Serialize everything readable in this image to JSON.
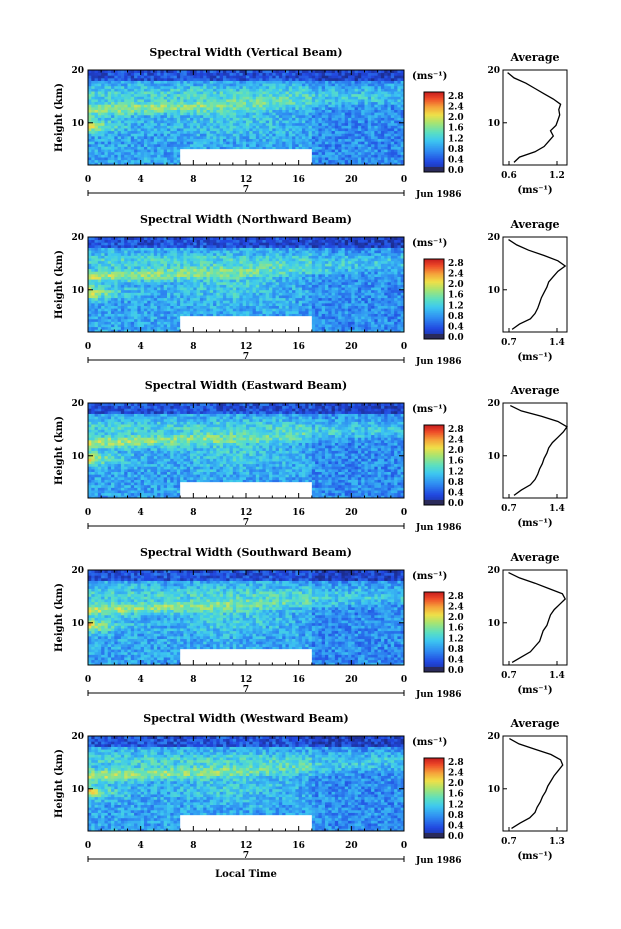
{
  "chart_data": [
    {
      "type": "heatmap",
      "title": "Spectral Width (Vertical Beam)",
      "ylabel": "Height (km)",
      "y_ticks": [
        "20",
        "10"
      ],
      "x_ticks": [
        "0",
        "4",
        "8",
        "12",
        "16",
        "20",
        "0"
      ],
      "xlim": [
        0,
        24
      ],
      "ylim": [
        2,
        20
      ],
      "date_marker": "7",
      "date_label": "Jun 1986",
      "colorbar": {
        "unit": "(ms⁻¹)",
        "ticks": [
          "2.8",
          "2.4",
          "2.0",
          "1.6",
          "1.2",
          "0.8",
          "0.4",
          "0.0"
        ]
      },
      "data_gap": {
        "x": [
          7,
          17
        ],
        "y": [
          2,
          5
        ]
      },
      "profile": {
        "title": "Average",
        "xlabel": "(ms⁻¹)",
        "x_ticks": [
          "0.6",
          "1.2"
        ],
        "xlim": [
          0.6,
          1.3
        ],
        "y_ticks": [
          "20",
          "10"
        ],
        "ylim": [
          2,
          20
        ],
        "height": [
          2.5,
          3.5,
          4.5,
          5.5,
          6.5,
          7.5,
          8.5,
          9.5,
          10.5,
          11.5,
          12.5,
          13.5,
          14.5,
          15.5,
          16.5,
          17.5,
          18.5,
          19.5
        ],
        "value": [
          0.72,
          0.78,
          0.95,
          1.05,
          1.1,
          1.15,
          1.12,
          1.18,
          1.2,
          1.22,
          1.21,
          1.23,
          1.15,
          1.05,
          0.95,
          0.85,
          0.72,
          0.65
        ]
      }
    },
    {
      "type": "heatmap",
      "title": "Spectral Width (Northward Beam)",
      "ylabel": "Height (km)",
      "y_ticks": [
        "20",
        "10"
      ],
      "x_ticks": [
        "0",
        "4",
        "8",
        "12",
        "16",
        "20",
        "0"
      ],
      "xlim": [
        0,
        24
      ],
      "ylim": [
        2,
        20
      ],
      "date_marker": "7",
      "date_label": "Jun 1986",
      "colorbar": {
        "unit": "(ms⁻¹)",
        "ticks": [
          "2.8",
          "2.4",
          "2.0",
          "1.6",
          "1.2",
          "0.8",
          "0.4",
          "0.0"
        ]
      },
      "data_gap": {
        "x": [
          7,
          17
        ],
        "y": [
          2,
          5
        ]
      },
      "profile": {
        "title": "Average",
        "xlabel": "(ms⁻¹)",
        "x_ticks": [
          "0.7",
          "1.4"
        ],
        "xlim": [
          0.7,
          1.4
        ],
        "y_ticks": [
          "20",
          "10"
        ],
        "ylim": [
          2,
          20
        ],
        "height": [
          2.5,
          3.5,
          4.5,
          5.5,
          6.5,
          7.5,
          8.5,
          9.5,
          10.5,
          11.5,
          12.5,
          13.5,
          14.5,
          15.5,
          16.5,
          17.5,
          18.5,
          19.5
        ],
        "value": [
          0.8,
          0.88,
          1.0,
          1.05,
          1.08,
          1.1,
          1.12,
          1.15,
          1.18,
          1.2,
          1.25,
          1.3,
          1.38,
          1.3,
          1.15,
          0.98,
          0.85,
          0.76
        ]
      }
    },
    {
      "type": "heatmap",
      "title": "Spectral Width (Eastward Beam)",
      "ylabel": "Height (km)",
      "y_ticks": [
        "20",
        "10"
      ],
      "x_ticks": [
        "0",
        "4",
        "8",
        "12",
        "16",
        "20",
        "0"
      ],
      "xlim": [
        0,
        24
      ],
      "ylim": [
        2,
        20
      ],
      "date_marker": "7",
      "date_label": "Jun 1986",
      "colorbar": {
        "unit": "(ms⁻¹)",
        "ticks": [
          "2.8",
          "2.4",
          "2.0",
          "1.6",
          "1.2",
          "0.8",
          "0.4",
          "0.0"
        ]
      },
      "data_gap": {
        "x": [
          7,
          17
        ],
        "y": [
          2,
          5
        ]
      },
      "profile": {
        "title": "Average",
        "xlabel": "(ms⁻¹)",
        "x_ticks": [
          "0.7",
          "1.4"
        ],
        "xlim": [
          0.7,
          1.4
        ],
        "y_ticks": [
          "20",
          "10"
        ],
        "ylim": [
          2,
          20
        ],
        "height": [
          2.5,
          3.5,
          4.5,
          5.5,
          6.5,
          7.5,
          8.5,
          9.5,
          10.5,
          11.5,
          12.5,
          13.5,
          14.5,
          15.5,
          16.5,
          17.5,
          18.5,
          19.5
        ],
        "value": [
          0.82,
          0.9,
          1.0,
          1.05,
          1.08,
          1.1,
          1.13,
          1.15,
          1.18,
          1.2,
          1.24,
          1.3,
          1.36,
          1.4,
          1.3,
          1.12,
          0.9,
          0.78
        ]
      }
    },
    {
      "type": "heatmap",
      "title": "Spectral Width (Southward Beam)",
      "ylabel": "Height (km)",
      "y_ticks": [
        "20",
        "10"
      ],
      "x_ticks": [
        "0",
        "4",
        "8",
        "12",
        "16",
        "20",
        "0"
      ],
      "xlim": [
        0,
        24
      ],
      "ylim": [
        2,
        20
      ],
      "date_marker": "7",
      "date_label": "Jun 1986",
      "colorbar": {
        "unit": "(ms⁻¹)",
        "ticks": [
          "2.8",
          "2.4",
          "2.0",
          "1.6",
          "1.2",
          "0.8",
          "0.4",
          "0.0"
        ]
      },
      "data_gap": {
        "x": [
          7,
          17
        ],
        "y": [
          2,
          5
        ]
      },
      "profile": {
        "title": "Average",
        "xlabel": "(ms⁻¹)",
        "x_ticks": [
          "0.7",
          "1.4"
        ],
        "xlim": [
          0.7,
          1.4
        ],
        "y_ticks": [
          "20",
          "10"
        ],
        "ylim": [
          2,
          20
        ],
        "height": [
          2.5,
          3.5,
          4.5,
          5.5,
          6.5,
          7.5,
          8.5,
          9.5,
          10.5,
          11.5,
          12.5,
          13.5,
          14.5,
          15.5,
          16.5,
          17.5,
          18.5,
          19.5
        ],
        "value": [
          0.8,
          0.9,
          1.0,
          1.05,
          1.1,
          1.12,
          1.14,
          1.18,
          1.2,
          1.22,
          1.26,
          1.32,
          1.38,
          1.35,
          1.2,
          1.05,
          0.88,
          0.76
        ]
      }
    },
    {
      "type": "heatmap",
      "title": "Spectral Width (Westward Beam)",
      "ylabel": "Height (km)",
      "y_ticks": [
        "20",
        "10"
      ],
      "x_ticks": [
        "0",
        "4",
        "8",
        "12",
        "16",
        "20",
        "0"
      ],
      "xlabel": "Local Time",
      "xlim": [
        0,
        24
      ],
      "ylim": [
        2,
        20
      ],
      "date_marker": "7",
      "date_label": "Jun 1986",
      "colorbar": {
        "unit": "(ms⁻¹)",
        "ticks": [
          "2.8",
          "2.4",
          "2.0",
          "1.6",
          "1.2",
          "0.8",
          "0.4",
          "0.0"
        ]
      },
      "data_gap": {
        "x": [
          7,
          17
        ],
        "y": [
          2,
          5
        ]
      },
      "profile": {
        "title": "Average",
        "xlabel": "(ms⁻¹)",
        "x_ticks": [
          "0.7",
          "1.3"
        ],
        "xlim": [
          0.7,
          1.3
        ],
        "y_ticks": [
          "20",
          "10"
        ],
        "ylim": [
          2,
          20
        ],
        "height": [
          2.5,
          3.5,
          4.5,
          5.5,
          6.5,
          7.5,
          8.5,
          9.5,
          10.5,
          11.5,
          12.5,
          13.5,
          14.5,
          15.5,
          16.5,
          17.5,
          18.5,
          19.5
        ],
        "value": [
          0.78,
          0.86,
          0.95,
          1.0,
          1.02,
          1.05,
          1.07,
          1.1,
          1.12,
          1.15,
          1.18,
          1.22,
          1.26,
          1.24,
          1.15,
          1.0,
          0.85,
          0.76
        ]
      }
    }
  ]
}
